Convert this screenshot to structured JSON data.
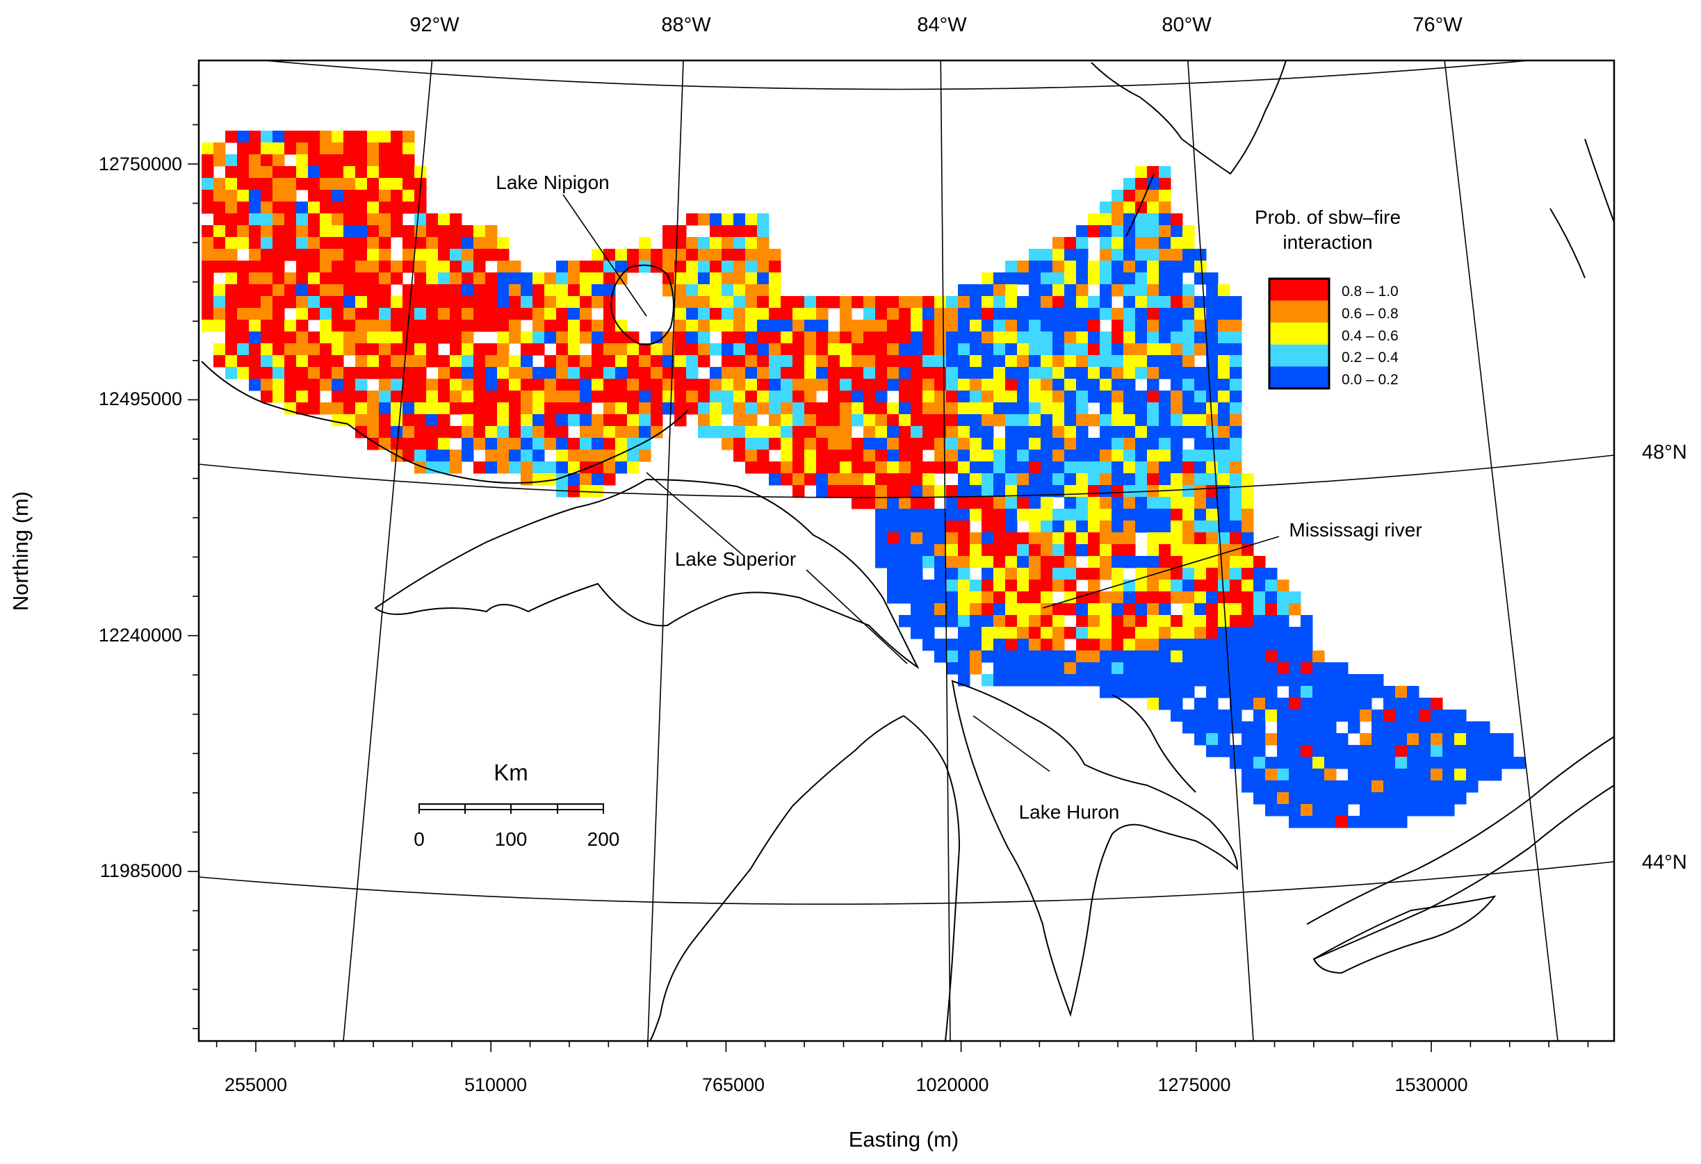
{
  "axes": {
    "x_label": "Easting (m)",
    "y_label": "Northing (m)",
    "x_ticks": [
      "255000",
      "510000",
      "765000",
      "1020000",
      "1275000",
      "1530000"
    ],
    "y_ticks": [
      "12750000",
      "12495000",
      "12240000",
      "11985000"
    ]
  },
  "graticule": {
    "meridians": [
      "92°W",
      "88°W",
      "84°W",
      "80°W",
      "76°W"
    ],
    "parallels": [
      "48°N",
      "44°N"
    ]
  },
  "labels": {
    "lake_nipigon": "Lake Nipigon",
    "lake_superior": "Lake Superior",
    "lake_huron": "Lake Huron",
    "mississagi": "Mississagi river"
  },
  "legend": {
    "title_line1": "Prob. of sbw–fire",
    "title_line2": "interaction",
    "classes": [
      {
        "label": "0.8 – 1.0",
        "color": "#ff0000"
      },
      {
        "label": "0.6 – 0.8",
        "color": "#ff8c00"
      },
      {
        "label": "0.4 – 0.6",
        "color": "#ffff00"
      },
      {
        "label": "0.2 – 0.4",
        "color": "#40d8ff"
      },
      {
        "label": "0.0 – 0.2",
        "color": "#0050ff"
      }
    ]
  },
  "scale_bar": {
    "title": "Km",
    "ticks": [
      "0",
      "100",
      "200"
    ],
    "mid_label": "100"
  }
}
